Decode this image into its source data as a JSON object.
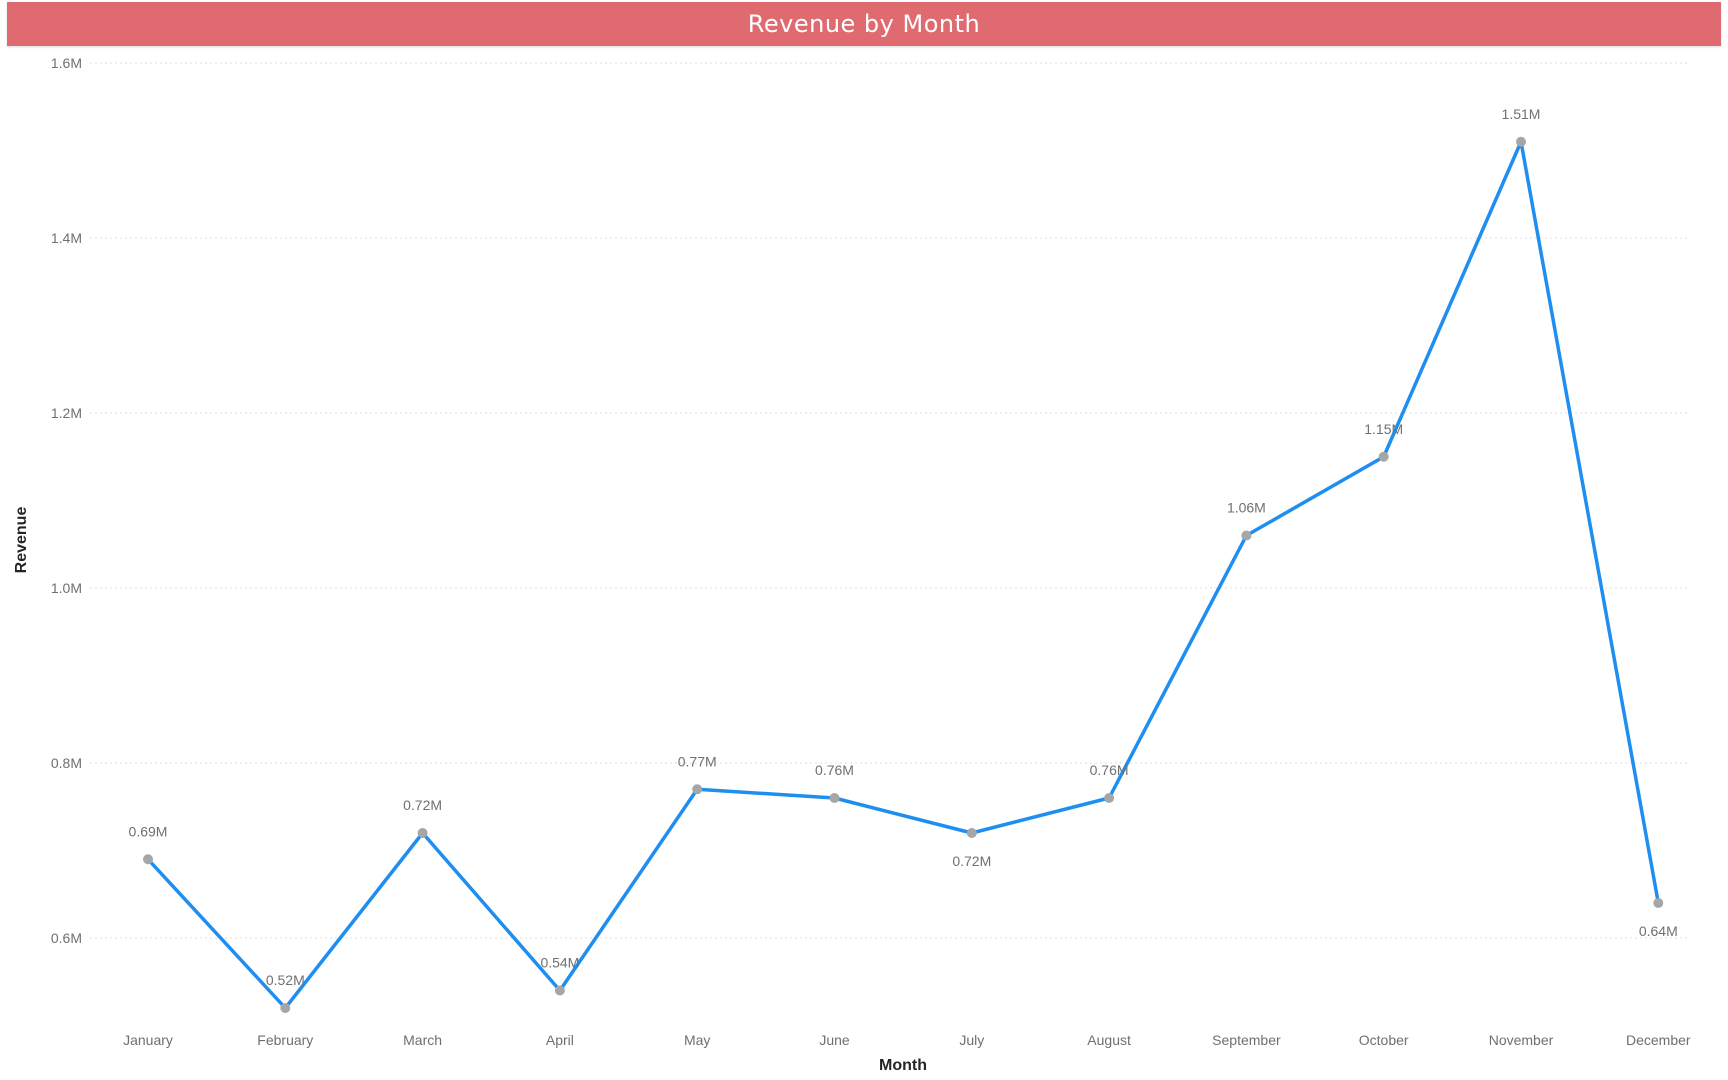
{
  "chart_data": {
    "type": "line",
    "title": "Revenue by Month",
    "xlabel": "Month",
    "ylabel": "Revenue",
    "categories": [
      "January",
      "February",
      "March",
      "April",
      "May",
      "June",
      "July",
      "August",
      "September",
      "October",
      "November",
      "December"
    ],
    "values": [
      0.69,
      0.52,
      0.72,
      0.54,
      0.77,
      0.76,
      0.72,
      0.76,
      1.06,
      1.15,
      1.51,
      0.64
    ],
    "data_labels": [
      "0.69M",
      "0.52M",
      "0.72M",
      "0.54M",
      "0.77M",
      "0.76M",
      "0.72M",
      "0.76M",
      "1.06M",
      "1.15M",
      "1.51M",
      "0.64M"
    ],
    "label_positions": [
      "above",
      "above",
      "above",
      "above",
      "above",
      "above",
      "below",
      "above",
      "above",
      "above",
      "above",
      "below"
    ],
    "ylim": [
      0.5,
      1.6
    ],
    "y_ticks": [
      0.6,
      0.8,
      1.0,
      1.2,
      1.4,
      1.6
    ],
    "y_tick_labels": [
      "0.6M",
      "0.8M",
      "1.0M",
      "1.2M",
      "1.4M",
      "1.6M"
    ],
    "grid": true,
    "legend": "none"
  },
  "colors": {
    "title_bar": "#df6a70",
    "line": "#1f8ef1",
    "marker": "#a6a6a6"
  }
}
